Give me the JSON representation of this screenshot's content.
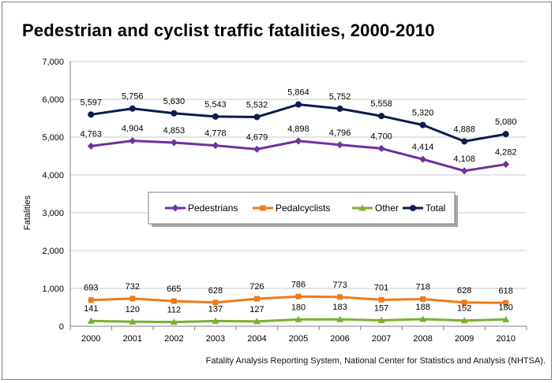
{
  "title": "Pedestrian and cyclist traffic fatalities, 2000-2010",
  "source": "Fatality Analysis Reporting System, National Center for Statistics and Analysis (NHTSA).",
  "chart_data": {
    "type": "line",
    "title": "Pedestrian and cyclist traffic fatalities, 2000-2010",
    "xlabel": "",
    "ylabel": "Fatalities",
    "ylim": [
      0,
      7000
    ],
    "yticks": [
      "0",
      "1,000",
      "2,000",
      "3,000",
      "4,000",
      "5,000",
      "6,000",
      "7,000"
    ],
    "categories": [
      "2000",
      "2001",
      "2002",
      "2003",
      "2004",
      "2005",
      "2006",
      "2007",
      "2008",
      "2009",
      "2010"
    ],
    "grid": "horizontal",
    "legend_position": "center",
    "series": [
      {
        "name": "Pedestrians",
        "color": "#7030a0",
        "marker": "diamond",
        "values": [
          4763,
          4904,
          4853,
          4778,
          4679,
          4898,
          4796,
          4700,
          4414,
          4108,
          4282
        ],
        "labels": [
          "4,763",
          "4,904",
          "4,853",
          "4,778",
          "4,679",
          "4,898",
          "4,796",
          "4,700",
          "4,414",
          "4,108",
          "4,282"
        ]
      },
      {
        "name": "Pedalcyclists",
        "color": "#f07a1a",
        "marker": "square",
        "values": [
          693,
          732,
          665,
          628,
          726,
          786,
          773,
          701,
          718,
          628,
          618
        ],
        "labels": [
          "693",
          "732",
          "665",
          "628",
          "726",
          "786",
          "773",
          "701",
          "718",
          "628",
          "618"
        ]
      },
      {
        "name": "Other",
        "color": "#7ab02f",
        "marker": "triangle",
        "values": [
          141,
          120,
          112,
          137,
          127,
          180,
          183,
          157,
          188,
          152,
          180
        ],
        "labels": [
          "141",
          "120",
          "112",
          "137",
          "127",
          "180",
          "183",
          "157",
          "188",
          "152",
          "180"
        ]
      },
      {
        "name": "Total",
        "color": "#0d1b4f",
        "marker": "circle",
        "values": [
          5597,
          5756,
          5630,
          5543,
          5532,
          5864,
          5752,
          5558,
          5320,
          4888,
          5080
        ],
        "labels": [
          "5,597",
          "5,756",
          "5,630",
          "5,543",
          "5,532",
          "5,864",
          "5,752",
          "5,558",
          "5,320",
          "4,888",
          "5,080"
        ]
      }
    ]
  }
}
